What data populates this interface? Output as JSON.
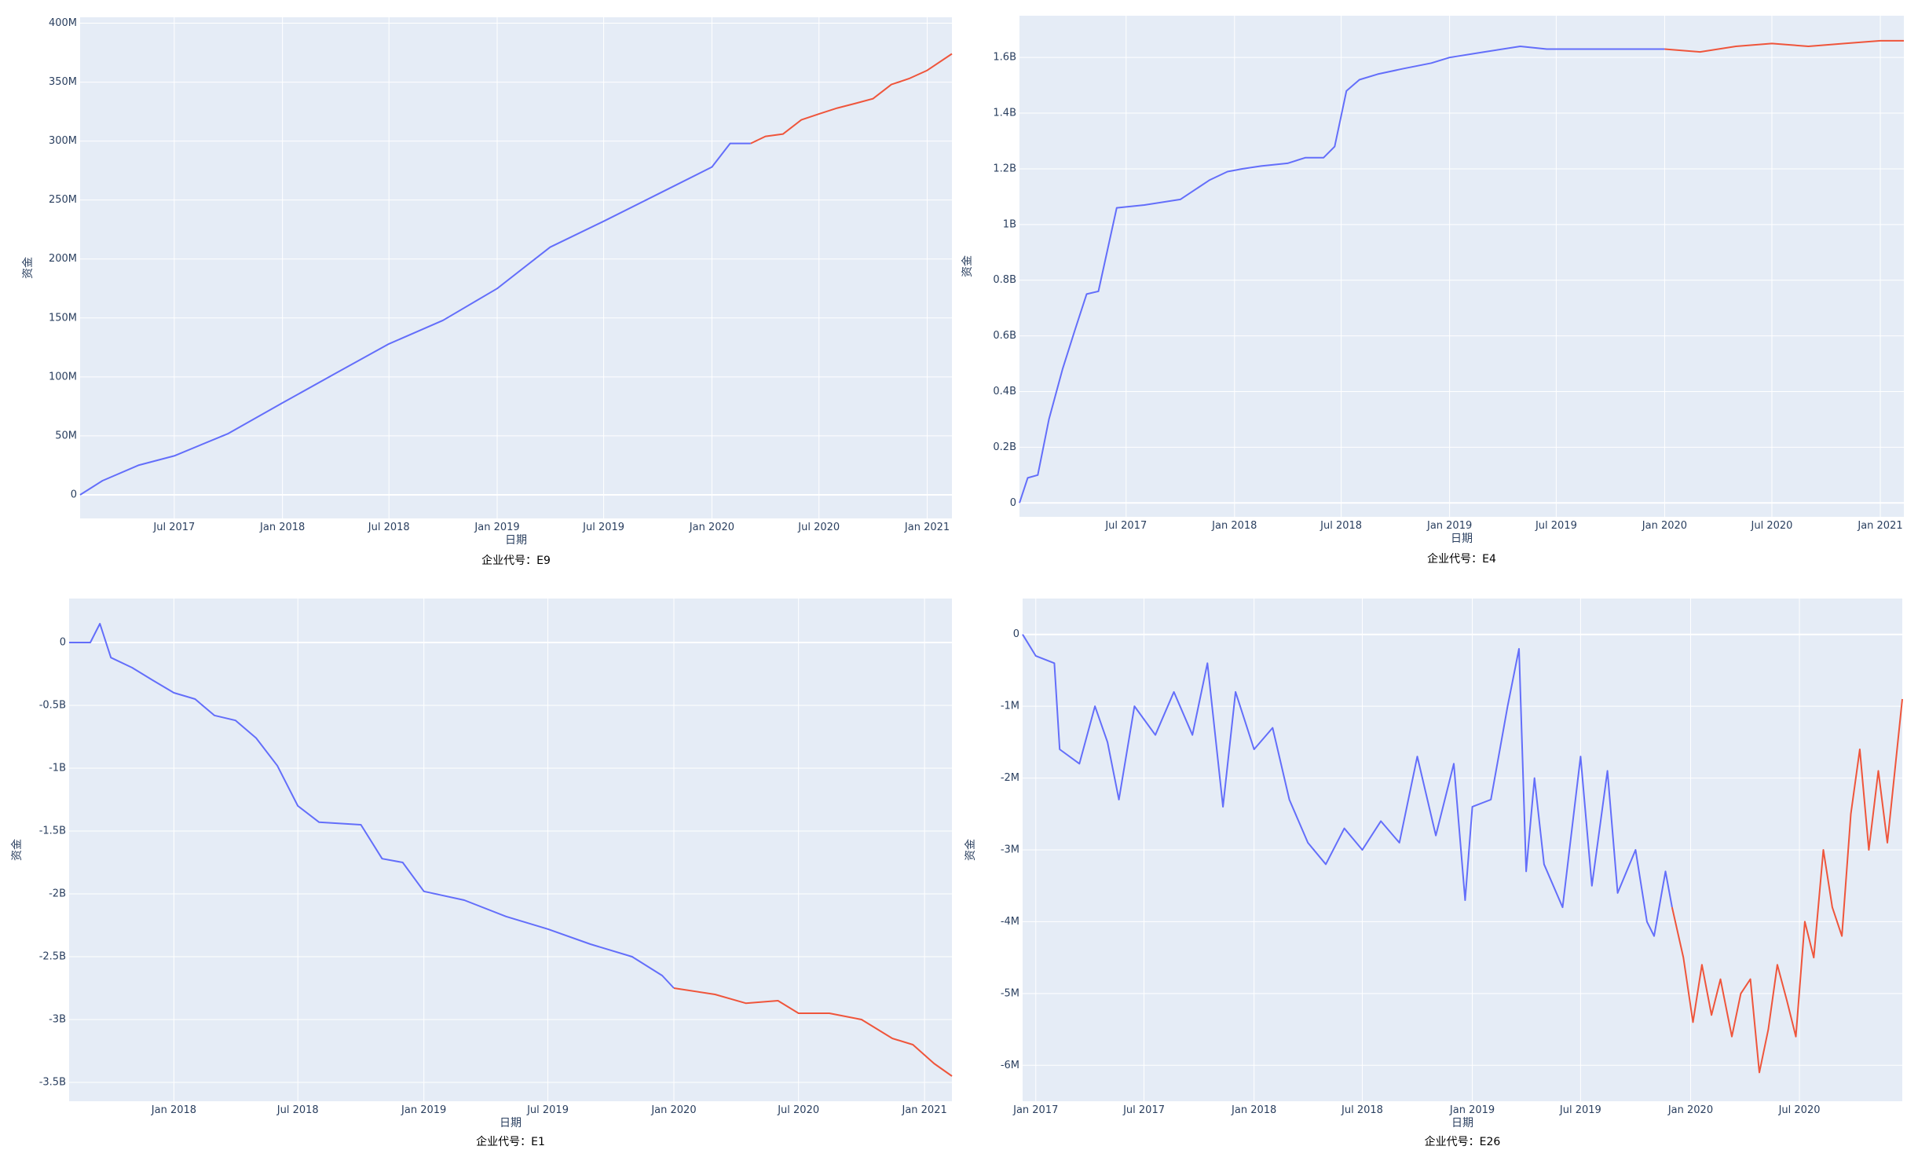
{
  "colors": {
    "history": "#636efa",
    "forecast": "#ef553b",
    "plot_bg": "#e5ecf6",
    "grid": "#ffffff"
  },
  "chart_data": [
    {
      "type": "line",
      "company_label": "企业代号：E9",
      "xlabel": "日期",
      "ylabel": "资金",
      "x_ticks": [
        "Jul 2017",
        "Jan 2018",
        "Jul 2018",
        "Jan 2019",
        "Jul 2019",
        "Jan 2020",
        "Jul 2020",
        "Jan 2021"
      ],
      "y_ticks": [
        "0",
        "50M",
        "100M",
        "150M",
        "200M",
        "250M",
        "300M",
        "350M",
        "400M"
      ],
      "xlim": [
        "2017-01-22",
        "2021-02-12"
      ],
      "ylim": [
        -20,
        405
      ],
      "y_tick_values": [
        0,
        50,
        100,
        150,
        200,
        250,
        300,
        350,
        400
      ],
      "series": [
        {
          "role": "history",
          "x": [
            "2017-01-22",
            "2017-03-01",
            "2017-05-01",
            "2017-07-01",
            "2017-10-01",
            "2018-01-01",
            "2018-04-01",
            "2018-07-01",
            "2018-10-01",
            "2019-01-01",
            "2019-04-01",
            "2019-07-01",
            "2019-10-01",
            "2020-01-01",
            "2020-02-01",
            "2020-03-07"
          ],
          "y": [
            0,
            12,
            25,
            33,
            52,
            78,
            103,
            128,
            148,
            175,
            210,
            232,
            255,
            278,
            298,
            298
          ]
        },
        {
          "role": "forecast",
          "x": [
            "2020-03-07",
            "2020-04-01",
            "2020-05-01",
            "2020-06-01",
            "2020-07-01",
            "2020-08-01",
            "2020-09-01",
            "2020-10-01",
            "2020-11-01",
            "2020-12-01",
            "2021-01-01",
            "2021-02-12"
          ],
          "y": [
            298,
            304,
            306,
            318,
            323,
            328,
            332,
            336,
            348,
            353,
            360,
            374
          ]
        }
      ]
    },
    {
      "type": "line",
      "company_label": "企业代号：E4",
      "xlabel": "日期",
      "ylabel": "资金",
      "x_ticks": [
        "Jul 2017",
        "Jan 2018",
        "Jul 2018",
        "Jan 2019",
        "Jul 2019",
        "Jan 2020",
        "Jul 2020",
        "Jan 2021"
      ],
      "y_ticks": [
        "0",
        "0.2B",
        "0.4B",
        "0.6B",
        "0.8B",
        "1B",
        "1.2B",
        "1.4B",
        "1.6B"
      ],
      "xlim": [
        "2017-01-01",
        "2021-02-10"
      ],
      "ylim": [
        -0.05,
        1.75
      ],
      "y_tick_values": [
        0,
        0.2,
        0.4,
        0.6,
        0.8,
        1.0,
        1.2,
        1.4,
        1.6
      ],
      "series": [
        {
          "role": "history",
          "x": [
            "2017-01-01",
            "2017-01-15",
            "2017-02-01",
            "2017-02-20",
            "2017-03-15",
            "2017-04-05",
            "2017-04-25",
            "2017-05-15",
            "2017-06-15",
            "2017-08-01",
            "2017-10-01",
            "2017-11-20",
            "2017-12-20",
            "2018-01-15",
            "2018-02-15",
            "2018-04-01",
            "2018-05-01",
            "2018-06-01",
            "2018-06-20",
            "2018-07-10",
            "2018-08-01",
            "2018-09-01",
            "2018-10-15",
            "2018-12-01",
            "2019-01-01",
            "2019-03-01",
            "2019-05-01",
            "2019-06-15",
            "2019-09-01",
            "2019-12-01",
            "2020-01-01"
          ],
          "y": [
            0,
            0.09,
            0.1,
            0.3,
            0.48,
            0.62,
            0.75,
            0.76,
            1.06,
            1.07,
            1.09,
            1.16,
            1.19,
            1.2,
            1.21,
            1.22,
            1.24,
            1.24,
            1.28,
            1.48,
            1.52,
            1.54,
            1.56,
            1.58,
            1.6,
            1.62,
            1.64,
            1.63,
            1.63,
            1.63,
            1.63
          ]
        },
        {
          "role": "forecast",
          "x": [
            "2020-01-01",
            "2020-03-01",
            "2020-05-01",
            "2020-07-01",
            "2020-09-01",
            "2020-11-01",
            "2021-01-01",
            "2021-02-10"
          ],
          "y": [
            1.63,
            1.62,
            1.64,
            1.65,
            1.64,
            1.65,
            1.66,
            1.66
          ]
        }
      ]
    },
    {
      "type": "line",
      "company_label": "企业代号：E1",
      "xlabel": "日期",
      "ylabel": "资金",
      "x_ticks": [
        "Jan 2018",
        "Jul 2018",
        "Jan 2019",
        "Jul 2019",
        "Jan 2020",
        "Jul 2020",
        "Jan 2021"
      ],
      "y_ticks": [
        "0",
        "-0.5B",
        "-1B",
        "-1.5B",
        "-2B",
        "-2.5B",
        "-3B",
        "-3.5B"
      ],
      "xlim": [
        "2017-08-01",
        "2021-02-10"
      ],
      "ylim": [
        -3.65,
        0.35
      ],
      "y_tick_values": [
        0,
        -0.5,
        -1.0,
        -1.5,
        -2.0,
        -2.5,
        -3.0,
        -3.5
      ],
      "series": [
        {
          "role": "history",
          "x": [
            "2017-08-01",
            "2017-09-01",
            "2017-09-15",
            "2017-10-01",
            "2017-11-01",
            "2017-12-01",
            "2018-01-01",
            "2018-02-01",
            "2018-03-01",
            "2018-04-01",
            "2018-05-01",
            "2018-06-01",
            "2018-07-01",
            "2018-08-01",
            "2018-10-01",
            "2018-11-01",
            "2018-12-01",
            "2019-01-01",
            "2019-03-01",
            "2019-05-01",
            "2019-07-01",
            "2019-09-01",
            "2019-11-01",
            "2019-12-15",
            "2020-01-01"
          ],
          "y": [
            0,
            0,
            0.15,
            -0.12,
            -0.2,
            -0.3,
            -0.4,
            -0.45,
            -0.58,
            -0.62,
            -0.76,
            -0.98,
            -1.3,
            -1.43,
            -1.45,
            -1.72,
            -1.75,
            -1.98,
            -2.05,
            -2.18,
            -2.28,
            -2.4,
            -2.5,
            -2.65,
            -2.75
          ]
        },
        {
          "role": "forecast",
          "x": [
            "2020-01-01",
            "2020-03-01",
            "2020-04-15",
            "2020-06-01",
            "2020-07-01",
            "2020-08-15",
            "2020-10-01",
            "2020-11-15",
            "2020-12-15",
            "2021-01-15",
            "2021-02-10"
          ],
          "y": [
            -2.75,
            -2.8,
            -2.87,
            -2.85,
            -2.95,
            -2.95,
            -3.0,
            -3.15,
            -3.2,
            -3.35,
            -3.45
          ]
        }
      ]
    },
    {
      "type": "line",
      "company_label": "企业代号：E26",
      "xlabel": "日期",
      "ylabel": "资金",
      "x_ticks": [
        "Jan 2017",
        "Jul 2017",
        "Jan 2018",
        "Jul 2018",
        "Jan 2019",
        "Jul 2019",
        "Jan 2020",
        "Jul 2020"
      ],
      "y_ticks": [
        "0",
        "-1M",
        "-2M",
        "-3M",
        "-4M",
        "-5M",
        "-6M"
      ],
      "xlim": [
        "2016-12-10",
        "2020-12-20"
      ],
      "ylim": [
        -6.5,
        0.5
      ],
      "y_tick_values": [
        0,
        -1,
        -2,
        -3,
        -4,
        -5,
        -6
      ],
      "series": [
        {
          "role": "history",
          "x": [
            "2016-12-10",
            "2017-01-01",
            "2017-02-01",
            "2017-02-10",
            "2017-03-15",
            "2017-04-10",
            "2017-05-01",
            "2017-05-20",
            "2017-06-15",
            "2017-07-20",
            "2017-08-20",
            "2017-09-20",
            "2017-10-15",
            "2017-11-10",
            "2017-12-01",
            "2018-01-01",
            "2018-02-01",
            "2018-03-01",
            "2018-04-01",
            "2018-05-01",
            "2018-06-01",
            "2018-07-01",
            "2018-08-01",
            "2018-09-01",
            "2018-10-01",
            "2018-11-01",
            "2018-12-01",
            "2018-12-20",
            "2019-01-01",
            "2019-02-01",
            "2019-03-01",
            "2019-03-20",
            "2019-04-01",
            "2019-04-15",
            "2019-05-01",
            "2019-06-01",
            "2019-07-01",
            "2019-07-20",
            "2019-08-15",
            "2019-09-01",
            "2019-10-01",
            "2019-10-20",
            "2019-11-01",
            "2019-11-20",
            "2019-12-01"
          ],
          "y": [
            0,
            -0.3,
            -0.4,
            -1.6,
            -1.8,
            -1.0,
            -1.5,
            -2.3,
            -1.0,
            -1.4,
            -0.8,
            -1.4,
            -0.4,
            -2.4,
            -0.8,
            -1.6,
            -1.3,
            -2.3,
            -2.9,
            -3.2,
            -2.7,
            -3.0,
            -2.6,
            -2.9,
            -1.7,
            -2.8,
            -1.8,
            -3.7,
            -2.4,
            -2.3,
            -1.0,
            -0.2,
            -3.3,
            -2.0,
            -3.2,
            -3.8,
            -1.7,
            -3.5,
            -1.9,
            -3.6,
            -3.0,
            -4.0,
            -4.2,
            -3.3,
            -3.8
          ]
        },
        {
          "role": "forecast",
          "x": [
            "2019-12-01",
            "2019-12-20",
            "2020-01-05",
            "2020-01-20",
            "2020-02-05",
            "2020-02-20",
            "2020-03-10",
            "2020-03-25",
            "2020-04-10",
            "2020-04-25",
            "2020-05-10",
            "2020-05-25",
            "2020-06-10",
            "2020-06-25",
            "2020-07-10",
            "2020-07-25",
            "2020-08-10",
            "2020-08-25",
            "2020-09-10",
            "2020-09-25",
            "2020-10-10",
            "2020-10-25",
            "2020-11-10",
            "2020-11-25",
            "2020-12-20"
          ],
          "y": [
            -3.8,
            -4.5,
            -5.4,
            -4.6,
            -5.3,
            -4.8,
            -5.6,
            -5.0,
            -4.8,
            -6.1,
            -5.5,
            -4.6,
            -5.1,
            -5.6,
            -4.0,
            -4.5,
            -3.0,
            -3.8,
            -4.2,
            -2.5,
            -1.6,
            -3.0,
            -1.9,
            -2.9,
            -0.9
          ]
        }
      ]
    }
  ]
}
